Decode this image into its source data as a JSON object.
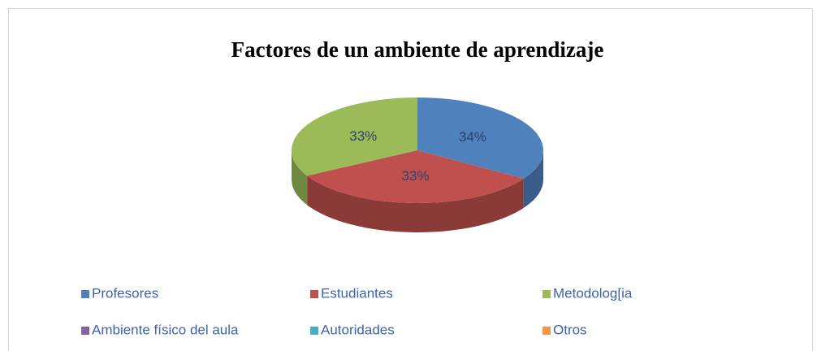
{
  "chart_data": {
    "type": "pie3d",
    "title": "Factores de un ambiente de aprendizaje",
    "categories": [
      "Profesores",
      "Estudiantes",
      "Metodolog[ia",
      "Ambiente físico del aula",
      "Autoridades",
      "Otros"
    ],
    "values": [
      34,
      33,
      33,
      0,
      0,
      0
    ],
    "value_labels": [
      "34%",
      "33%",
      "33%",
      null,
      null,
      null
    ],
    "colors": [
      "#4f81bd",
      "#c0504d",
      "#9bbb59",
      "#8064a2",
      "#4bacc6",
      "#f79646"
    ],
    "legend": "bottom"
  }
}
